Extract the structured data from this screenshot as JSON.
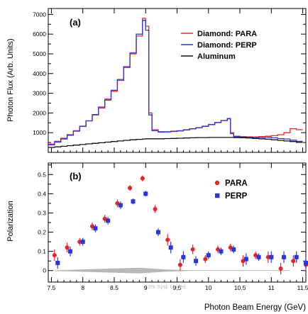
{
  "chart_data": [
    {
      "type": "line",
      "panel_label": "(a)",
      "ylabel": "Photon Flux (Arb. Units)",
      "xlim": [
        7.45,
        11.55
      ],
      "ylim": [
        0,
        7300
      ],
      "yticks": [
        1000,
        2000,
        3000,
        4000,
        5000,
        6000,
        7000
      ],
      "ytick_labels": [
        "1000",
        "2000",
        "3000",
        "4000",
        "5000",
        "6000",
        "7000"
      ],
      "legend_position": "top-right",
      "x": [
        7.45,
        7.55,
        7.65,
        7.75,
        7.85,
        7.95,
        8.05,
        8.15,
        8.25,
        8.35,
        8.45,
        8.55,
        8.65,
        8.75,
        8.85,
        8.95,
        9.0,
        9.05,
        9.1,
        9.2,
        9.3,
        9.4,
        9.5,
        9.6,
        9.7,
        9.8,
        9.9,
        10.0,
        10.1,
        10.2,
        10.3,
        10.35,
        10.4,
        10.5,
        10.6,
        10.7,
        10.8,
        10.9,
        11.0,
        11.1,
        11.2,
        11.3,
        11.4,
        11.5
      ],
      "series": [
        {
          "name": "Diamond: PARA",
          "color": "#e8232a",
          "values": [
            420,
            560,
            720,
            900,
            1100,
            1330,
            1600,
            1900,
            2250,
            2650,
            3100,
            3650,
            4300,
            5000,
            5900,
            6800,
            6400,
            2000,
            1150,
            1050,
            1050,
            1080,
            1100,
            1150,
            1200,
            1260,
            1330,
            1420,
            1520,
            1620,
            1700,
            1000,
            820,
            800,
            790,
            780,
            800,
            820,
            850,
            900,
            1000,
            1200,
            1150,
            900
          ]
        },
        {
          "name": "Diamond: PERP",
          "color": "#2b35d8",
          "values": [
            380,
            520,
            680,
            870,
            1080,
            1320,
            1600,
            1920,
            2300,
            2700,
            3150,
            3700,
            4350,
            5050,
            6000,
            6700,
            6200,
            1900,
            1100,
            1030,
            1040,
            1060,
            1090,
            1140,
            1190,
            1250,
            1320,
            1410,
            1510,
            1620,
            1720,
            950,
            800,
            780,
            770,
            760,
            760,
            760,
            740,
            700,
            680,
            620,
            560,
            500
          ]
        },
        {
          "name": "Aluminum",
          "color": "#111111",
          "values": [
            250,
            280,
            310,
            340,
            370,
            400,
            430,
            460,
            490,
            520,
            550,
            580,
            610,
            640,
            660,
            680,
            690,
            690,
            690,
            690,
            700,
            710,
            720,
            730,
            740,
            750,
            750,
            760,
            760,
            760,
            760,
            760,
            750,
            740,
            730,
            710,
            690,
            670,
            640,
            610,
            580,
            550,
            510,
            470
          ]
        }
      ]
    },
    {
      "type": "scatter",
      "panel_label": "(b)",
      "ylabel": "Polarization",
      "xlabel": "Photon Beam Energy (GeV)",
      "xlim": [
        7.45,
        11.55
      ],
      "ylim": [
        -0.06,
        0.56
      ],
      "xticks": [
        7.5,
        8,
        8.5,
        9,
        9.5,
        10,
        10.5,
        11,
        11.5
      ],
      "xtick_labels": [
        "7.5",
        "8",
        "8.5",
        "9",
        "9.5",
        "10",
        "10.5",
        "11",
        "11.5"
      ],
      "yticks": [
        0,
        0.1,
        0.2,
        0.3,
        0.4,
        0.5
      ],
      "ytick_labels": [
        "0",
        "0.1",
        "0.2",
        "0.3",
        "0.4",
        "0.5"
      ],
      "legend_position": "top-right",
      "band_annotation": "3% Syst. Uncert.",
      "series": [
        {
          "name": "PARA",
          "color": "#e8232a",
          "marker": "circle",
          "x": [
            7.55,
            7.75,
            7.95,
            8.15,
            8.35,
            8.55,
            8.75,
            8.95,
            9.15,
            9.35,
            9.55,
            9.75,
            9.95,
            10.15,
            10.35,
            10.55,
            10.75,
            10.95,
            11.15,
            11.35,
            11.55
          ],
          "y": [
            0.08,
            0.12,
            0.15,
            0.23,
            0.27,
            0.35,
            0.43,
            0.48,
            0.32,
            0.16,
            0.03,
            0.11,
            0.06,
            0.11,
            0.12,
            0.05,
            0.08,
            0.07,
            0.01,
            0.05,
            0.03
          ],
          "err": [
            0.03,
            0.025,
            0.02,
            0.02,
            0.02,
            0.02,
            0.015,
            0.015,
            0.02,
            0.03,
            0.03,
            0.025,
            0.02,
            0.02,
            0.02,
            0.03,
            0.02,
            0.03,
            0.03,
            0.03,
            0.03
          ]
        },
        {
          "name": "PERP",
          "color": "#2b35d8",
          "marker": "square",
          "x": [
            7.6,
            7.8,
            8.0,
            8.2,
            8.4,
            8.6,
            8.8,
            9.0,
            9.2,
            9.4,
            9.6,
            9.8,
            10.0,
            10.2,
            10.4,
            10.6,
            10.8,
            11.0,
            11.2,
            11.4,
            11.55
          ],
          "y": [
            0.04,
            0.1,
            0.15,
            0.22,
            0.26,
            0.34,
            0.36,
            0.4,
            0.2,
            0.12,
            0.07,
            0.05,
            0.08,
            0.1,
            0.11,
            0.06,
            0.07,
            0.07,
            0.07,
            0.07,
            0.04
          ],
          "err": [
            0.03,
            0.025,
            0.02,
            0.02,
            0.02,
            0.02,
            0.015,
            0.015,
            0.02,
            0.03,
            0.03,
            0.025,
            0.02,
            0.02,
            0.02,
            0.03,
            0.02,
            0.03,
            0.03,
            0.03,
            0.03
          ]
        }
      ]
    }
  ]
}
